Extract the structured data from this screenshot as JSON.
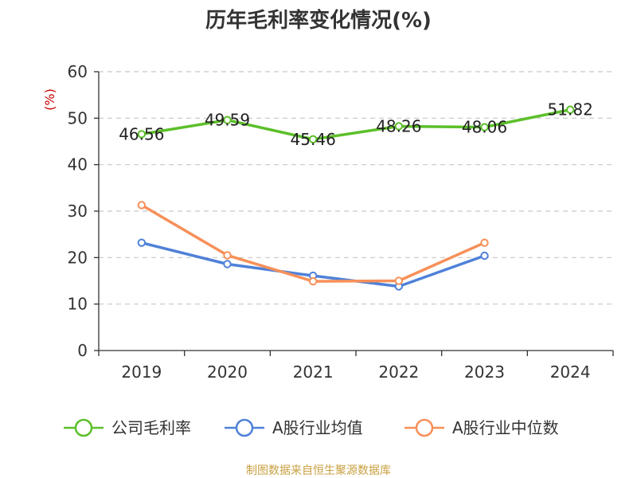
{
  "chart_data": {
    "type": "line",
    "title": "历年毛利率变化情况(%)",
    "ylabel": "(%)",
    "xlabel": "",
    "categories": [
      "2019",
      "2020",
      "2021",
      "2022",
      "2023",
      "2024"
    ],
    "ylim": [
      0,
      60
    ],
    "yticks": [
      0,
      10,
      20,
      30,
      40,
      50,
      60
    ],
    "grid": true,
    "legend_position": "bottom",
    "series": [
      {
        "name": "公司毛利率",
        "color": "#5cbf2a",
        "values": [
          46.56,
          49.59,
          45.46,
          48.26,
          48.06,
          51.82
        ],
        "labels": [
          "46.56",
          "49.59",
          "45.46",
          "48.26",
          "48.06",
          "51.82"
        ]
      },
      {
        "name": "A股行业均值",
        "color": "#4f81d8",
        "values": [
          23.2,
          18.6,
          16.1,
          13.8,
          20.4,
          null
        ]
      },
      {
        "name": "A股行业中位数",
        "color": "#f79059",
        "values": [
          31.3,
          20.5,
          14.9,
          15.0,
          23.2,
          null
        ]
      }
    ]
  },
  "source": "制图数据来自恒生聚源数据库"
}
